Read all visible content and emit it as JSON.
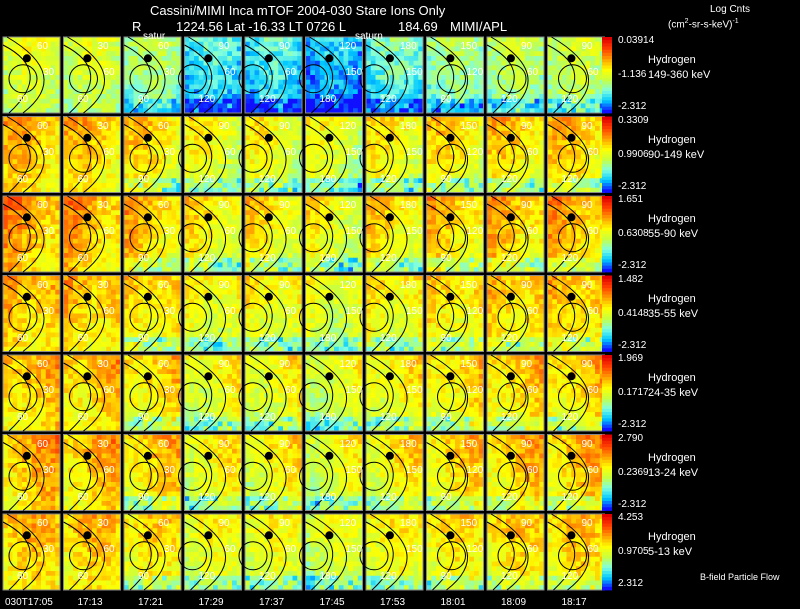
{
  "header": {
    "title": "Cassini/MIMI Inca mTOF  2004-030    Stare    Ions Only",
    "r_label": "R",
    "orbit": "1224.56 Lat -16.33 LT 0726 L",
    "l_value": "184.69",
    "institution": "MIMI/APL",
    "units_title": "Log Cnts",
    "units_base": "(cm",
    "units_sup1": "2",
    "units_mid": "-sr-s-keV)",
    "units_sup2": "-1"
  },
  "saturn_labels": [
    "satur",
    "saturn"
  ],
  "footer": "B-field Particle Flow",
  "colors": {
    "background": "#000000",
    "grid": "#8a8a8a",
    "contour": "#000000",
    "colormap": [
      "#1010ff",
      "#00c8ff",
      "#80ffe0",
      "#c8ff40",
      "#ffff00",
      "#ffa000",
      "#ff4000",
      "#e00000"
    ]
  },
  "chart_data": {
    "type": "heatmap",
    "description_units": "Log counts per energy band image panel",
    "times": [
      "030T17:05",
      "17:13",
      "17:21",
      "17:29",
      "17:37",
      "17:45",
      "17:53",
      "18:01",
      "18:09",
      "18:17"
    ],
    "bands": [
      {
        "species": "Hydrogen",
        "energy": "149-360 keV",
        "max": "0.03914",
        "mid": "-1.136",
        "min": "-2.312"
      },
      {
        "species": "Hydrogen",
        "energy": "90-149 keV",
        "max": "0.3309",
        "mid": "0.9906",
        "min": "-2.312"
      },
      {
        "species": "Hydrogen",
        "energy": "55-90 keV",
        "max": "1.651",
        "mid": "0.6308",
        "min": "-2.312"
      },
      {
        "species": "Hydrogen",
        "energy": "35-55 keV",
        "max": "1.482",
        "mid": "0.4148",
        "min": "-2.312"
      },
      {
        "species": "Hydrogen",
        "energy": "24-35 keV",
        "max": "1.969",
        "mid": "0.1717",
        "min": "-2.312"
      },
      {
        "species": "Hydrogen",
        "energy": "13-24 keV",
        "max": "2.790",
        "mid": "0.2369",
        "min": "-2.312"
      },
      {
        "species": "Hydrogen",
        "energy": "5-13 keV",
        "max": "4.253",
        "mid": "0.9705",
        "min": "2.312"
      }
    ],
    "row_intensity": [
      0.45,
      0.62,
      0.7,
      0.7,
      0.68,
      0.66,
      0.6
    ],
    "column_cool": [
      0.05,
      0.1,
      0.25,
      0.55,
      0.55,
      0.7,
      0.45,
      0.3,
      0.2,
      0.15
    ],
    "contour_labels_by_column": [
      [
        "60",
        "30",
        "60"
      ],
      [
        "30",
        "60",
        "60"
      ],
      [
        "60",
        "30",
        "90"
      ],
      [
        "90",
        "60",
        "120"
      ],
      [
        "90",
        "60",
        "120"
      ],
      [
        "120",
        "150",
        "180"
      ],
      [
        "180",
        "150",
        "120"
      ],
      [
        "150",
        "120",
        "90"
      ],
      [
        "90",
        "60",
        "120"
      ],
      [
        "90",
        "60",
        "120"
      ]
    ]
  }
}
